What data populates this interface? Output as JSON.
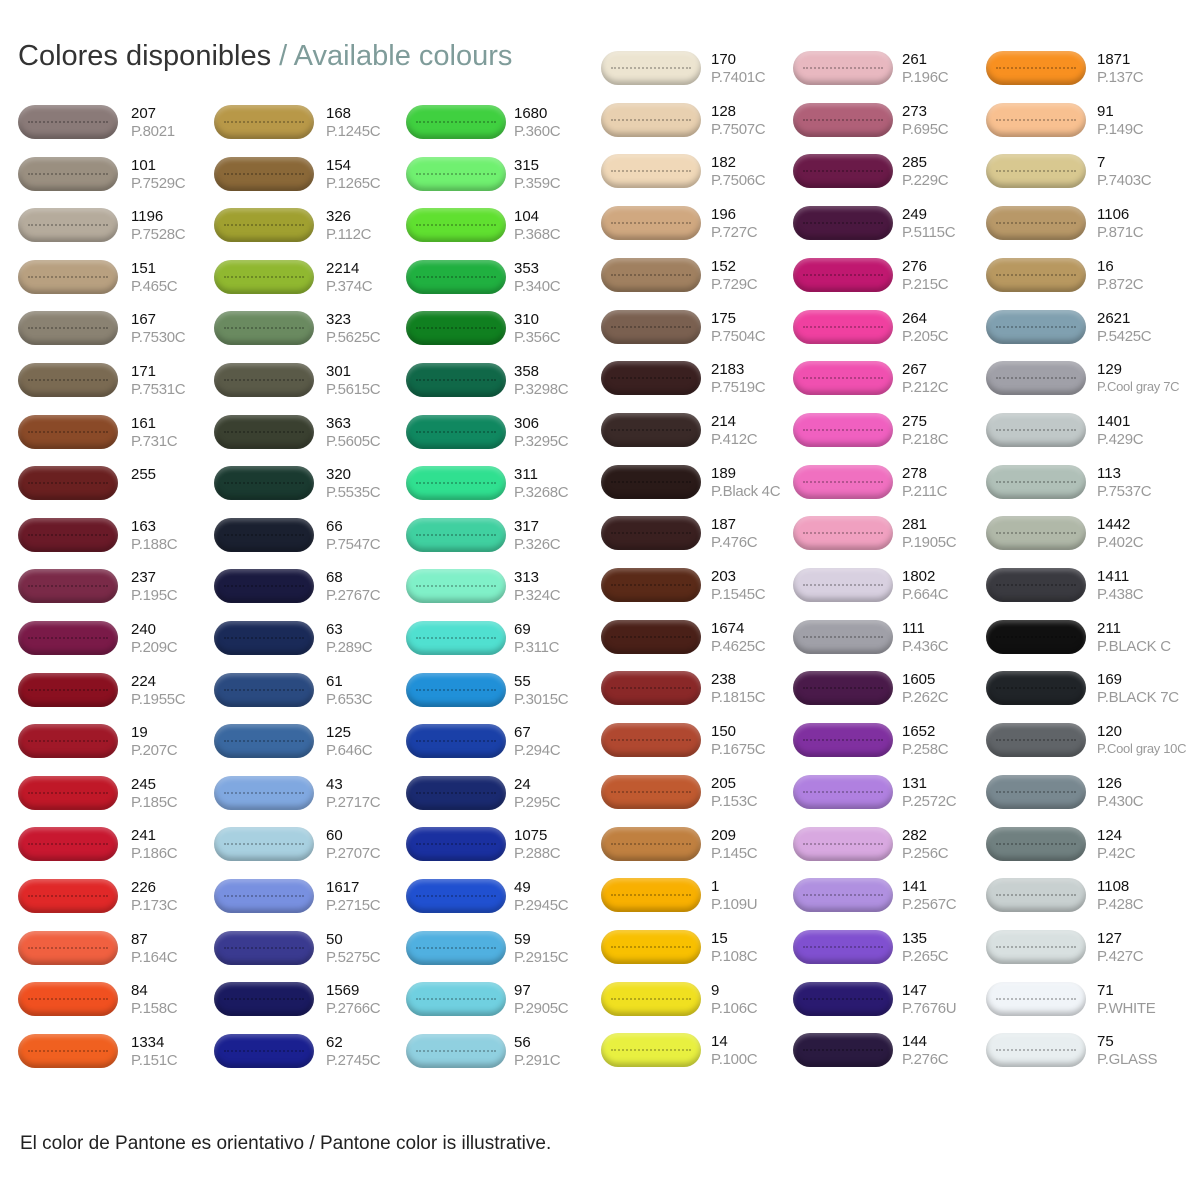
{
  "header": {
    "title": "Colores disponibles",
    "subtitle": "/ Available colours"
  },
  "columns": [
    [
      {
        "code": "207",
        "pantone": "P.8021",
        "color": "#8a7a78"
      },
      {
        "code": "101",
        "pantone": "P.7529C",
        "color": "#9a8f80"
      },
      {
        "code": "1196",
        "pantone": "P.7528C",
        "color": "#b5ab9c"
      },
      {
        "code": "151",
        "pantone": "P.465C",
        "color": "#b8a080"
      },
      {
        "code": "167",
        "pantone": "P.7530C",
        "color": "#8a8272"
      },
      {
        "code": "171",
        "pantone": "P.7531C",
        "color": "#7a6a52"
      },
      {
        "code": "161",
        "pantone": "P.731C",
        "color": "#8a4a28"
      },
      {
        "code": "255",
        "color": "#6a2020"
      },
      {
        "code": "163",
        "pantone": "P.188C",
        "color": "#6a1a28"
      },
      {
        "code": "237",
        "pantone": "P.195C",
        "color": "#7a2a48"
      },
      {
        "code": "240",
        "pantone": "P.209C",
        "color": "#7a1a48"
      },
      {
        "code": "224",
        "pantone": "P.1955C",
        "color": "#8a1020"
      },
      {
        "code": "19",
        "pantone": "P.207C",
        "color": "#a01828"
      },
      {
        "code": "245",
        "pantone": "P.185C",
        "color": "#c01828"
      },
      {
        "code": "241",
        "pantone": "P.186C",
        "color": "#c81830"
      },
      {
        "code": "226",
        "pantone": "P.173C",
        "color": "#e02828"
      },
      {
        "code": "87",
        "pantone": "P.164C",
        "color": "#f06040"
      },
      {
        "code": "84",
        "pantone": "P.158C",
        "color": "#f05020"
      },
      {
        "code": "1334",
        "pantone": "P.151C",
        "color": "#f06020"
      }
    ],
    [
      {
        "code": "168",
        "pantone": "P.1245C",
        "color": "#b89848"
      },
      {
        "code": "154",
        "pantone": "P.1265C",
        "color": "#8a6838"
      },
      {
        "code": "326",
        "pantone": "P.112C",
        "color": "#a0a030"
      },
      {
        "code": "2214",
        "pantone": "P.374C",
        "color": "#90b830"
      },
      {
        "code": "323",
        "pantone": "P.5625C",
        "color": "#6a8a60"
      },
      {
        "code": "301",
        "pantone": "P.5615C",
        "color": "#5a5a48"
      },
      {
        "code": "363",
        "pantone": "P.5605C",
        "color": "#3a4030"
      },
      {
        "code": "320",
        "pantone": "P.5535C",
        "color": "#1a3a30"
      },
      {
        "code": "66",
        "pantone": "P.7547C",
        "color": "#1a2030"
      },
      {
        "code": "68",
        "pantone": "P.2767C",
        "color": "#1a1a40"
      },
      {
        "code": "63",
        "pantone": "P.289C",
        "color": "#1a2a58"
      },
      {
        "code": "61",
        "pantone": "P.653C",
        "color": "#2a4a80"
      },
      {
        "code": "125",
        "pantone": "P.646C",
        "color": "#3a68a0"
      },
      {
        "code": "43",
        "pantone": "P.2717C",
        "color": "#80a8e0"
      },
      {
        "code": "60",
        "pantone": "P.2707C",
        "color": "#a8d0e0"
      },
      {
        "code": "1617",
        "pantone": "P.2715C",
        "color": "#7890e0"
      },
      {
        "code": "50",
        "pantone": "P.5275C",
        "color": "#3a3a90"
      },
      {
        "code": "1569",
        "pantone": "P.2766C",
        "color": "#1a1a60"
      },
      {
        "code": "62",
        "pantone": "P.2745C",
        "color": "#1a2090"
      }
    ],
    [
      {
        "code": "1680",
        "pantone": "P.360C",
        "color": "#40d040"
      },
      {
        "code": "315",
        "pantone": "P.359C",
        "color": "#70f070"
      },
      {
        "code": "104",
        "pantone": "P.368C",
        "color": "#60e030"
      },
      {
        "code": "353",
        "pantone": "P.340C",
        "color": "#20b040"
      },
      {
        "code": "310",
        "pantone": "P.356C",
        "color": "#108020"
      },
      {
        "code": "358",
        "pantone": "P.3298C",
        "color": "#106848"
      },
      {
        "code": "306",
        "pantone": "P.3295C",
        "color": "#108860"
      },
      {
        "code": "311",
        "pantone": "P.3268C",
        "color": "#30e090"
      },
      {
        "code": "317",
        "pantone": "P.326C",
        "color": "#40d0a0"
      },
      {
        "code": "313",
        "pantone": "P.324C",
        "color": "#80f0c8"
      },
      {
        "code": "69",
        "pantone": "P.311C",
        "color": "#50e0d0"
      },
      {
        "code": "55",
        "pantone": "P.3015C",
        "color": "#2090d8"
      },
      {
        "code": "67",
        "pantone": "P.294C",
        "color": "#1a40a8"
      },
      {
        "code": "24",
        "pantone": "P.295C",
        "color": "#1a2a70"
      },
      {
        "code": "1075",
        "pantone": "P.288C",
        "color": "#1a30a0"
      },
      {
        "code": "49",
        "pantone": "P.2945C",
        "color": "#2050d0"
      },
      {
        "code": "59",
        "pantone": "P.2915C",
        "color": "#50b0e0"
      },
      {
        "code": "97",
        "pantone": "P.2905C",
        "color": "#70d0e0"
      },
      {
        "code": "56",
        "pantone": "P.291C",
        "color": "#90d0e0"
      }
    ],
    [
      {
        "code": "170",
        "pantone": "P.7401C",
        "color": "#ece4d0"
      },
      {
        "code": "128",
        "pantone": "P.7507C",
        "color": "#e8d0b0"
      },
      {
        "code": "182",
        "pantone": "P.7506C",
        "color": "#f0d8b8"
      },
      {
        "code": "196",
        "pantone": "P.727C",
        "color": "#d0a880"
      },
      {
        "code": "152",
        "pantone": "P.729C",
        "color": "#a08060"
      },
      {
        "code": "175",
        "pantone": "P.7504C",
        "color": "#7a6050"
      },
      {
        "code": "2183",
        "pantone": "P.7519C",
        "color": "#3a2020"
      },
      {
        "code": "214",
        "pantone": "P.412C",
        "color": "#3a2a28"
      },
      {
        "code": "189",
        "pantone": "P.Black 4C",
        "color": "#2a1a18"
      },
      {
        "code": "187",
        "pantone": "P.476C",
        "color": "#3a2020"
      },
      {
        "code": "203",
        "pantone": "P.1545C",
        "color": "#5a2a18"
      },
      {
        "code": "1674",
        "pantone": "P.4625C",
        "color": "#4a2018"
      },
      {
        "code": "238",
        "pantone": "P.1815C",
        "color": "#8a2828"
      },
      {
        "code": "150",
        "pantone": "P.1675C",
        "color": "#b04830"
      },
      {
        "code": "205",
        "pantone": "P.153C",
        "color": "#c05a30"
      },
      {
        "code": "209",
        "pantone": "P.145C",
        "color": "#c08040"
      },
      {
        "code": "1",
        "pantone": "P.109U",
        "color": "#f8b000"
      },
      {
        "code": "15",
        "pantone": "P.108C",
        "color": "#f8c000"
      },
      {
        "code": "9",
        "pantone": "P.106C",
        "color": "#f0e020"
      },
      {
        "code": "14",
        "pantone": "P.100C",
        "color": "#e8f040"
      }
    ],
    [
      {
        "code": "261",
        "pantone": "P.196C",
        "color": "#e8b8c0"
      },
      {
        "code": "273",
        "pantone": "P.695C",
        "color": "#b06078"
      },
      {
        "code": "285",
        "pantone": "P.229C",
        "color": "#6a1a48"
      },
      {
        "code": "249",
        "pantone": "P.5115C",
        "color": "#4a1840"
      },
      {
        "code": "276",
        "pantone": "P.215C",
        "color": "#c01870"
      },
      {
        "code": "264",
        "pantone": "P.205C",
        "color": "#f040a0"
      },
      {
        "code": "267",
        "pantone": "P.212C",
        "color": "#f050b0"
      },
      {
        "code": "275",
        "pantone": "P.218C",
        "color": "#f060c0"
      },
      {
        "code": "278",
        "pantone": "P.211C",
        "color": "#f070c0"
      },
      {
        "code": "281",
        "pantone": "P.1905C",
        "color": "#f0a0c0"
      },
      {
        "code": "1802",
        "pantone": "P.664C",
        "color": "#d8d0e0"
      },
      {
        "code": "111",
        "pantone": "P.436C",
        "color": "#a0a0a8"
      },
      {
        "code": "1605",
        "pantone": "P.262C",
        "color": "#4a1a4a"
      },
      {
        "code": "1652",
        "pantone": "P.258C",
        "color": "#8030a0"
      },
      {
        "code": "131",
        "pantone": "P.2572C",
        "color": "#b080e0"
      },
      {
        "code": "282",
        "pantone": "P.256C",
        "color": "#d8a8e0"
      },
      {
        "code": "141",
        "pantone": "P.2567C",
        "color": "#b090e0"
      },
      {
        "code": "135",
        "pantone": "P.265C",
        "color": "#8050d0"
      },
      {
        "code": "147",
        "pantone": "P.7676U",
        "color": "#2a1a70"
      },
      {
        "code": "144",
        "pantone": "P.276C",
        "color": "#2a1a40"
      }
    ],
    [
      {
        "code": "1871",
        "pantone": "P.137C",
        "color": "#f89020"
      },
      {
        "code": "91",
        "pantone": "P.149C",
        "color": "#f8c090"
      },
      {
        "code": "7",
        "pantone": "P.7403C",
        "color": "#d8c890"
      },
      {
        "code": "1106",
        "pantone": "P.871C",
        "color": "#b89868"
      },
      {
        "code": "16",
        "pantone": "P.872C",
        "color": "#b89860"
      },
      {
        "code": "2621",
        "pantone": "P.5425C",
        "color": "#80a0b0"
      },
      {
        "code": "129",
        "pantone": "P.Cool gray 7C",
        "color": "#a0a0a8"
      },
      {
        "code": "1401",
        "pantone": "P.429C",
        "color": "#c0c8c8"
      },
      {
        "code": "113",
        "pantone": "P.7537C",
        "color": "#b0c0b8"
      },
      {
        "code": "1442",
        "pantone": "P.402C",
        "color": "#b0b8a8"
      },
      {
        "code": "1411",
        "pantone": "P.438C",
        "color": "#3a3a40"
      },
      {
        "code": "211",
        "pantone": "P.BLACK C",
        "color": "#101010"
      },
      {
        "code": "169",
        "pantone": "P.BLACK 7C",
        "color": "#202428"
      },
      {
        "code": "120",
        "pantone": "P.Cool gray 10C",
        "color": "#606468"
      },
      {
        "code": "126",
        "pantone": "P.430C",
        "color": "#788890"
      },
      {
        "code": "124",
        "pantone": "P.42C",
        "color": "#708080"
      },
      {
        "code": "1108",
        "pantone": "P.428C",
        "color": "#c8d0d0"
      },
      {
        "code": "127",
        "pantone": "P.427C",
        "color": "#d8e0e0"
      },
      {
        "code": "71",
        "pantone": "P.WHITE",
        "color": "#f0f4f8"
      },
      {
        "code": "75",
        "pantone": "P.GLASS",
        "color": "#e8eef0"
      }
    ]
  ],
  "footer": "El color de Pantone es orientativo / Pantone color is illustrative."
}
